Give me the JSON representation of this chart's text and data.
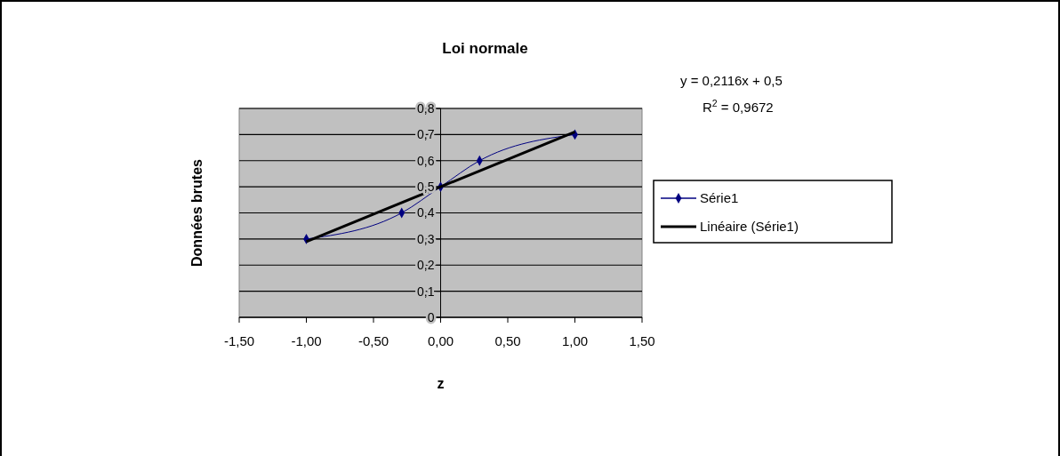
{
  "chart_data": {
    "type": "line",
    "title": "Loi normale",
    "xlabel": "z",
    "ylabel": "Données brutes",
    "annotations": [
      "y = 0,2116x + 0,5",
      "R$^{2}$ = 0,9672"
    ],
    "xlim": [
      -1.5,
      1.5
    ],
    "xticks": [
      {
        "value": -1.5,
        "label": "-1,50"
      },
      {
        "value": -1,
        "label": "-1,00"
      },
      {
        "value": -0.5,
        "label": "-0,50"
      },
      {
        "value": 0,
        "label": "0,00"
      },
      {
        "value": 0.5,
        "label": "0,50"
      },
      {
        "value": 1,
        "label": "1,00"
      },
      {
        "value": 1.5,
        "label": "1,50"
      }
    ],
    "ylim": [
      0,
      0.8
    ],
    "yticks": [
      0,
      {
        "value": 0.1,
        "label": "0,1"
      },
      {
        "value": 0.2,
        "label": "0,2"
      },
      {
        "value": 0.3,
        "label": "0,3"
      },
      {
        "value": 0.4,
        "label": "0,4"
      },
      {
        "value": 0.5,
        "label": "0,5"
      },
      {
        "value": 0.6,
        "label": "0,6"
      },
      {
        "value": 0.7,
        "label": "0,7"
      },
      {
        "value": 0.8,
        "label": "0,8"
      }
    ],
    "grid": "y",
    "legend": "right",
    "series": [
      {
        "name": "Série1",
        "color": "#000080",
        "x": [
          -1,
          -0.29,
          0,
          0.29,
          1
        ],
        "values": [
          0.3,
          0.4,
          0.5,
          0.6,
          0.7
        ],
        "marker": "diamond"
      },
      {
        "name": "Linéaire (Série1)",
        "color": "#000000",
        "x": [
          -1,
          1
        ],
        "values": [
          0.29,
          0.71
        ],
        "marker": "none"
      }
    ]
  }
}
